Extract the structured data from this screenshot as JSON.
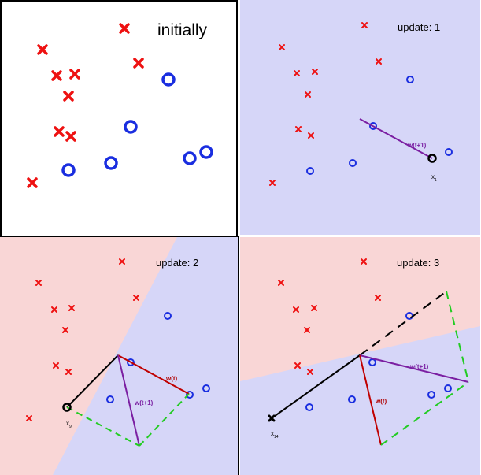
{
  "panels": [
    {
      "title": "initially"
    },
    {
      "title": "update: 1",
      "x_label": "x",
      "x_sub": "1",
      "w_next_label": "w(t+1)"
    },
    {
      "title": "update: 2",
      "x_label": "x",
      "x_sub": "9",
      "w_label": "w(t)",
      "w_next_label": "w(t+1)"
    },
    {
      "title": "update: 3",
      "x_label": "x",
      "x_sub": "14",
      "w_label": "w(t)",
      "w_next_label": "w(t+1)"
    }
  ],
  "colors": {
    "red_class": "#ee1111",
    "blue_class": "#1a2ee0",
    "red_region": "#f9d6d6",
    "blue_region": "#d6d6f8",
    "w_t": "#c00000",
    "w_next": "#7b1fa2",
    "x_vec": "#000000",
    "sum_vec": "#22cc22"
  }
}
